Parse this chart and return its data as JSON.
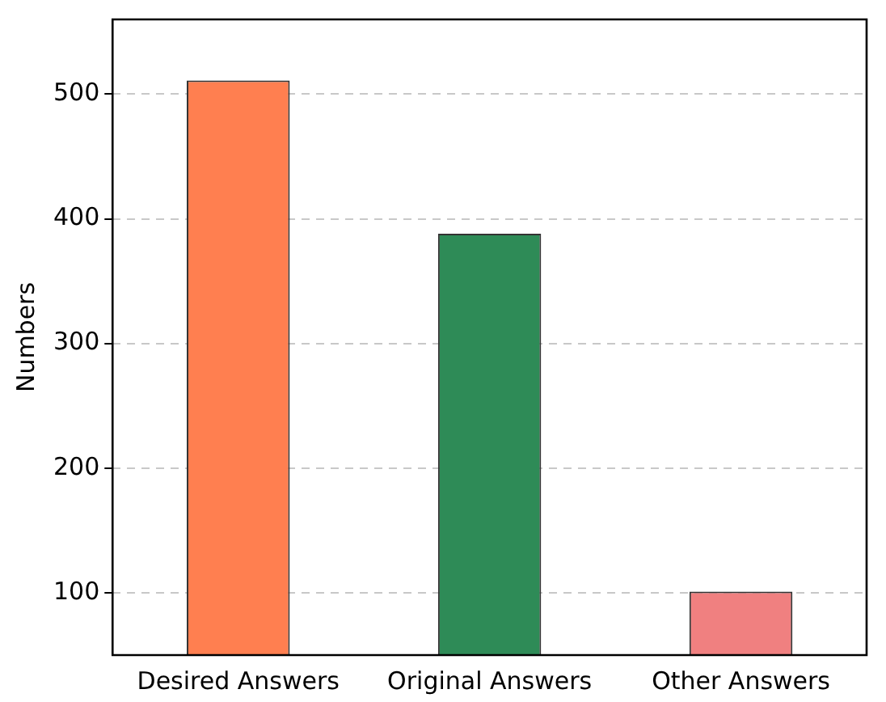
{
  "chart_data": {
    "type": "bar",
    "ylabel": "Numbers",
    "categories": [
      "Desired Answers",
      "Original Answers",
      "Other Answers"
    ],
    "values": [
      511,
      388,
      101
    ],
    "colors": [
      "#ff7f50",
      "#2e8b57",
      "#f08080"
    ],
    "ylim": [
      50,
      560
    ],
    "yticks": [
      100,
      200,
      300,
      400,
      500
    ],
    "grid": "y"
  }
}
